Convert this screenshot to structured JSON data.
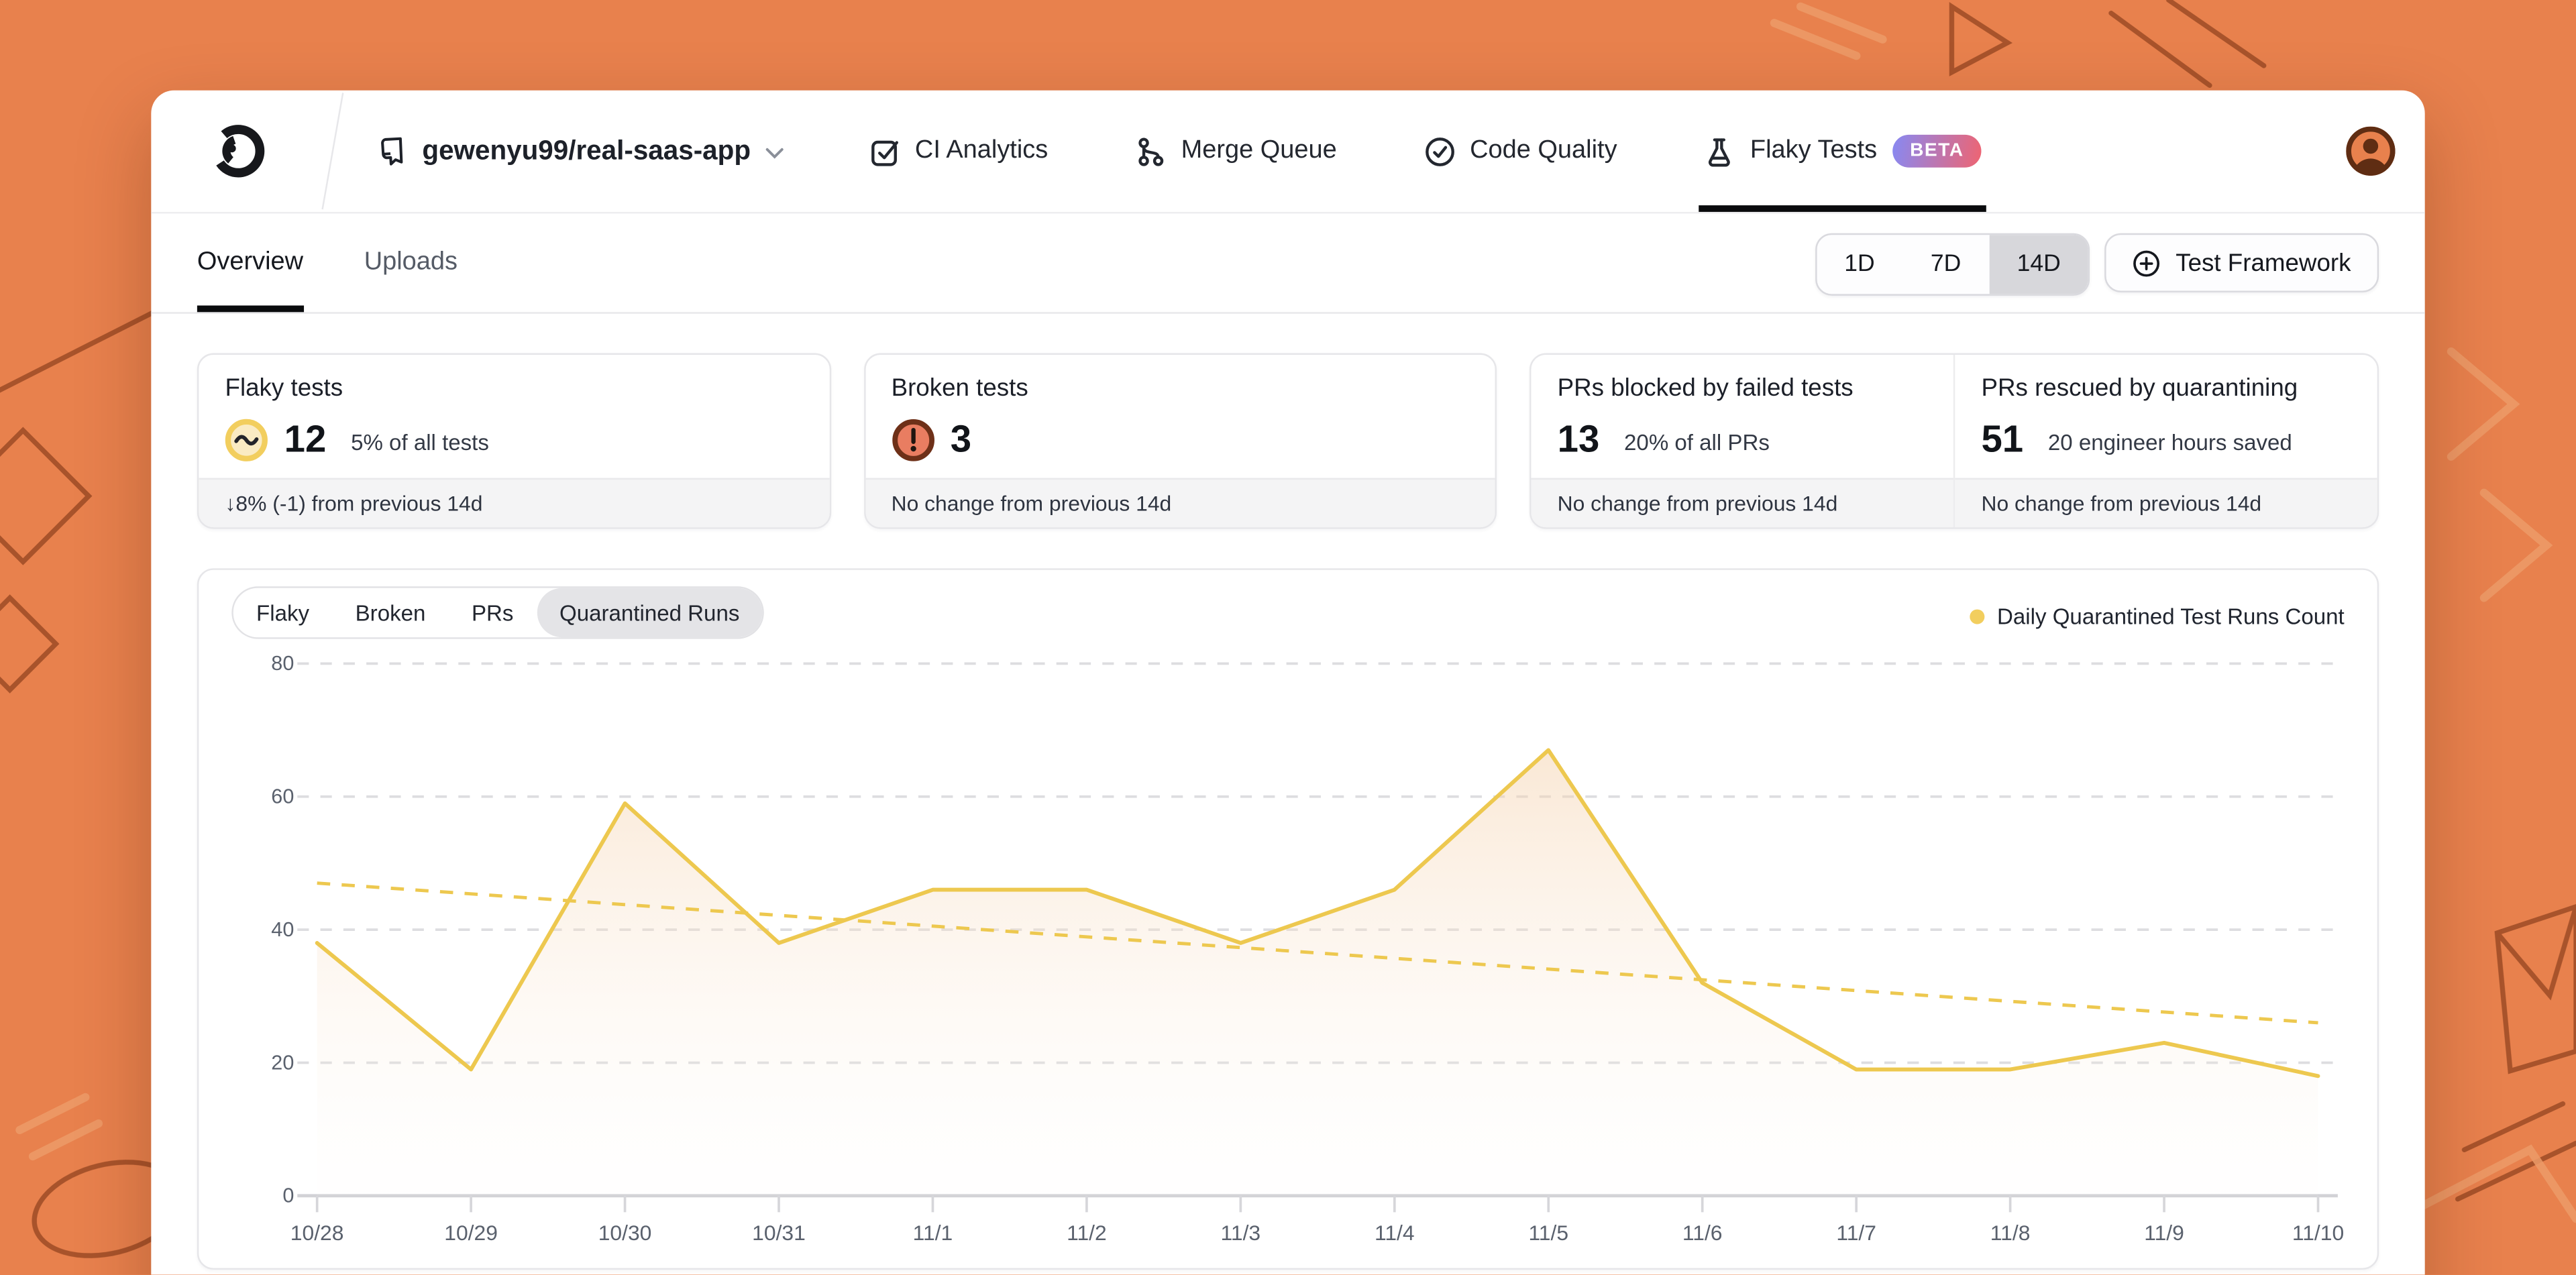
{
  "navbar": {
    "logo": "trunk-logo",
    "repo": {
      "name": "gewenyu99/real-saas-app"
    },
    "items": [
      {
        "label": "CI Analytics",
        "icon": "checkbox-check-icon",
        "active": false,
        "badge": null
      },
      {
        "label": "Merge Queue",
        "icon": "merge-queue-icon",
        "active": false,
        "badge": null
      },
      {
        "label": "Code Quality",
        "icon": "check-circle-icon",
        "active": false,
        "badge": null
      },
      {
        "label": "Flaky Tests",
        "icon": "flask-icon",
        "active": true,
        "badge": "BETA"
      }
    ],
    "badge_gradient": [
      "#8789F3",
      "#EF6471"
    ]
  },
  "tabs": {
    "overview": "Overview",
    "uploads": "Uploads"
  },
  "range_selector": {
    "options": [
      "1D",
      "7D",
      "14D"
    ],
    "selected": "14D"
  },
  "test_framework_button": {
    "label": "Test Framework"
  },
  "stats": {
    "flaky": {
      "title": "Flaky tests",
      "value": "12",
      "caption": "5% of all tests",
      "footer": "↓8% (-1) from previous 14d",
      "icon": "flaky-wave-icon",
      "icon_colors": {
        "ring": "#F2CE5E",
        "fill": "#FAEBC3",
        "stroke": "#23242A"
      }
    },
    "broken": {
      "title": "Broken tests",
      "value": "3",
      "caption": "",
      "footer": "No change from previous 14d",
      "icon": "broken-exclamation-icon",
      "icon_colors": {
        "ring": "#6E3018",
        "fill": "#E97D61",
        "stroke": "#201510"
      }
    },
    "blocked": {
      "title": "PRs blocked by failed tests",
      "value": "13",
      "caption": "20% of all PRs",
      "footer": "No change from previous 14d"
    },
    "rescued": {
      "title": "PRs rescued by quarantining",
      "value": "51",
      "caption": "20 engineer hours saved",
      "footer": "No change from previous 14d"
    }
  },
  "chart_data": {
    "type": "area",
    "tabs": [
      "Flaky",
      "Broken",
      "PRs",
      "Quarantined Runs"
    ],
    "selected_tab": "Quarantined Runs",
    "legend": [
      {
        "label": "Daily Quarantined Test Runs Count",
        "color": "#F2CE5E"
      }
    ],
    "x": [
      "10/28",
      "10/29",
      "10/30",
      "10/31",
      "11/1",
      "11/2",
      "11/3",
      "11/4",
      "11/5",
      "11/6",
      "11/7",
      "11/8",
      "11/9",
      "11/10"
    ],
    "series": [
      {
        "name": "Daily Quarantined Test Runs Count",
        "values": [
          38,
          19,
          59,
          38,
          46,
          46,
          38,
          46,
          67,
          32,
          19,
          19,
          23,
          18
        ],
        "color": "#EDC84F",
        "style": "solid",
        "area": true
      }
    ],
    "trend": {
      "start": 47,
      "end": 26,
      "color": "#EDC84F",
      "style": "dashed"
    },
    "ylim": [
      0,
      80
    ],
    "yticks": [
      0,
      20,
      40,
      60,
      80
    ],
    "grid": true,
    "legend_position": "top-right",
    "colors": {
      "grid": "#dddde0",
      "axis": "#d2d2d6",
      "tick_label": "#5a616d",
      "area_top": "rgba(244,206,166,0.50)",
      "area_bottom": "rgba(253,248,243,0.06)"
    }
  },
  "colors": {
    "background": "#E8814D",
    "doodle_dark": "#A14E27",
    "doodle_light": "#EC9B68",
    "accent_black": "#0A0B0D"
  }
}
